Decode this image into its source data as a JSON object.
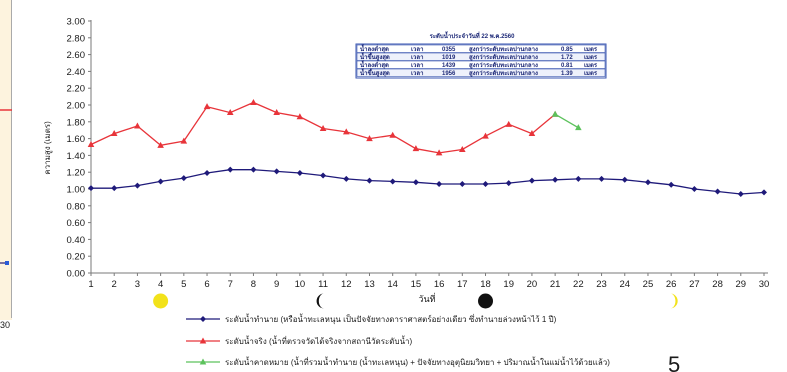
{
  "chart_data": {
    "type": "line",
    "title": "",
    "xlabel": "วันที่",
    "ylabel": "ความสูง (เมตร)",
    "ylim": [
      0,
      3
    ],
    "yticks": [
      "0.00",
      "0.20",
      "0.40",
      "0.60",
      "0.80",
      "1.00",
      "1.20",
      "1.40",
      "1.60",
      "1.80",
      "2.00",
      "2.20",
      "2.40",
      "2.60",
      "2.80",
      "3.00"
    ],
    "x": [
      1,
      2,
      3,
      4,
      5,
      6,
      7,
      8,
      9,
      10,
      11,
      12,
      13,
      14,
      15,
      16,
      17,
      18,
      19,
      20,
      21,
      22,
      23,
      24,
      25,
      26,
      27,
      28,
      29,
      30
    ],
    "grid": false,
    "legend_position": "bottom",
    "series": [
      {
        "name": "ระดับน้ำทำนาย (หรือน้ำทะเลหนุน เป็นปัจจัยทางดาราศาสตร์อย่างเดียว ซึ่งทำนายล่วงหน้าไว้ 1 ปี)",
        "color": "#1f1a7a",
        "marker": "diamond",
        "values": [
          1.01,
          1.01,
          1.04,
          1.09,
          1.13,
          1.19,
          1.23,
          1.23,
          1.21,
          1.19,
          1.16,
          1.12,
          1.1,
          1.09,
          1.08,
          1.06,
          1.06,
          1.06,
          1.07,
          1.1,
          1.11,
          1.12,
          1.12,
          1.11,
          1.08,
          1.05,
          1.0,
          0.97,
          0.94,
          0.96
        ]
      },
      {
        "name": "ระดับน้ำจริง (น้ำที่ตรวจวัดได้จริงจากสถานีวัดระดับน้ำ)",
        "color": "#e8343a",
        "marker": "triangle",
        "values": [
          1.53,
          1.66,
          1.75,
          1.52,
          1.57,
          1.98,
          1.91,
          2.03,
          1.91,
          1.86,
          1.72,
          1.68,
          1.6,
          1.64,
          1.48,
          1.43,
          1.47,
          1.63,
          1.77,
          1.66,
          1.89,
          null,
          null,
          null,
          null,
          null,
          null,
          null,
          null,
          null
        ]
      },
      {
        "name": "ระดับน้ำคาดหมาย (น้ำที่รวมน้ำทำนาย (น้ำทะเลหนุน) + ปัจจัยทางอุตุนิยมวิทยา + ปริมาณน้ำในแม่น้ำไว้ด้วยแล้ว)",
        "color": "#5cc25c",
        "marker": "triangle",
        "values": [
          null,
          null,
          null,
          null,
          null,
          null,
          null,
          null,
          null,
          null,
          null,
          null,
          null,
          null,
          null,
          null,
          null,
          null,
          null,
          null,
          1.89,
          1.73,
          null,
          null,
          null,
          null,
          null,
          null,
          null,
          null
        ]
      }
    ],
    "moon_phases": [
      {
        "day": 4,
        "phase": "full"
      },
      {
        "day": 11,
        "phase": "last-quarter"
      },
      {
        "day": 18,
        "phase": "new"
      },
      {
        "day": 26,
        "phase": "first-quarter"
      }
    ],
    "info_box": {
      "title": "ระดับน้ำประจำวันที่ 22 พ.ค.2560",
      "rows": [
        [
          "น้ำลงต่ำสุด",
          "เวลา",
          "0355",
          "สูงกว่าระดับทะเลปานกลาง",
          "0.85",
          "เมตร"
        ],
        [
          "น้ำขึ้นสูงสุด",
          "เวลา",
          "1019",
          "สูงกว่าระดับทะเลปานกลาง",
          "1.72",
          "เมตร"
        ],
        [
          "น้ำลงต่ำสุด",
          "เวลา",
          "1439",
          "สูงกว่าระดับทะเลปานกลาง",
          "0.81",
          "เมตร"
        ],
        [
          "น้ำขึ้นสูงสุด",
          "เวลา",
          "1956",
          "สูงกว่าระดับทะเลปานกลาง",
          "1.39",
          "เมตร"
        ]
      ]
    }
  },
  "side_panel": {
    "tick_label": "30"
  },
  "page_number": "5"
}
